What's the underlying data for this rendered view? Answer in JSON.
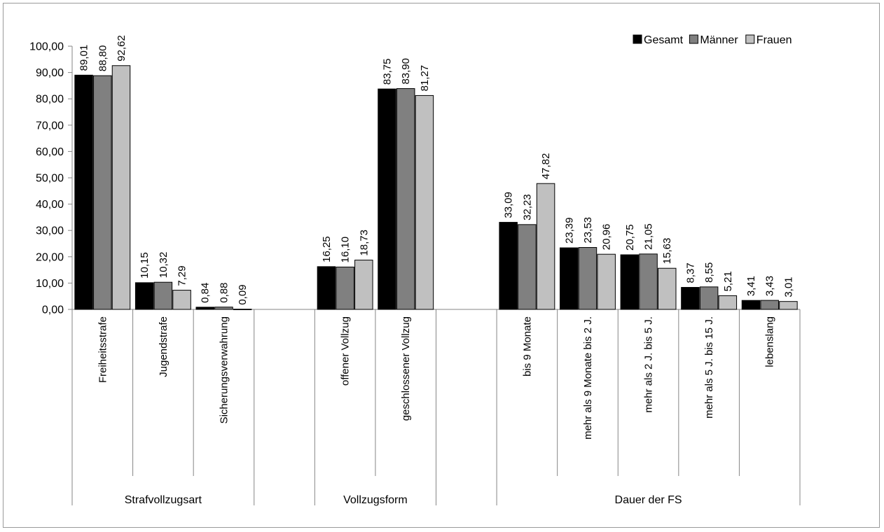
{
  "chart_data": {
    "type": "bar",
    "ylim": [
      0,
      100
    ],
    "y_ticks": [
      "0,00",
      "10,00",
      "20,00",
      "30,00",
      "40,00",
      "50,00",
      "60,00",
      "70,00",
      "80,00",
      "90,00",
      "100,00"
    ],
    "grid": false,
    "legend_position": "top-right",
    "categories": [
      "Freiheitsstrafe",
      "Jugendstrafe",
      "Sicherungsverwahrung",
      "",
      "offener Vollzug",
      "geschlossener Vollzug",
      "",
      "bis 9 Monate",
      "mehr als 9 Monate bis 2 J.",
      "mehr als 2 J. bis 5 J.",
      "mehr als 5 J. bis 15 J.",
      "lebenslang"
    ],
    "groups": [
      {
        "label": "Strafvollzugsart",
        "start": 0,
        "end": 2
      },
      {
        "label": "Vollzugsform",
        "start": 4,
        "end": 5
      },
      {
        "label": "Dauer der FS",
        "start": 7,
        "end": 11
      }
    ],
    "series": [
      {
        "name": "Gesamt",
        "color": "#000000",
        "values": [
          89.01,
          10.15,
          0.84,
          null,
          16.25,
          83.75,
          null,
          33.09,
          23.39,
          20.75,
          8.37,
          3.41
        ],
        "labels": [
          "89,01",
          "10,15",
          "0,84",
          "",
          "16,25",
          "83,75",
          "",
          "33,09",
          "23,39",
          "20,75",
          "8,37",
          "3,41"
        ]
      },
      {
        "name": "Männer",
        "color": "#808080",
        "values": [
          88.8,
          10.32,
          0.88,
          null,
          16.1,
          83.9,
          null,
          32.23,
          23.53,
          21.05,
          8.55,
          3.43
        ],
        "labels": [
          "88,80",
          "10,32",
          "0,88",
          "",
          "16,10",
          "83,90",
          "",
          "32,23",
          "23,53",
          "21,05",
          "8,55",
          "3,43"
        ]
      },
      {
        "name": "Frauen",
        "color": "#c0c0c0",
        "values": [
          92.62,
          7.29,
          0.09,
          null,
          18.73,
          81.27,
          null,
          47.82,
          20.96,
          15.63,
          5.21,
          3.01
        ],
        "labels": [
          "92,62",
          "7,29",
          "0,09",
          "",
          "18,73",
          "81,27",
          "",
          "47,82",
          "20,96",
          "15,63",
          "5,21",
          "3,01"
        ]
      }
    ]
  }
}
